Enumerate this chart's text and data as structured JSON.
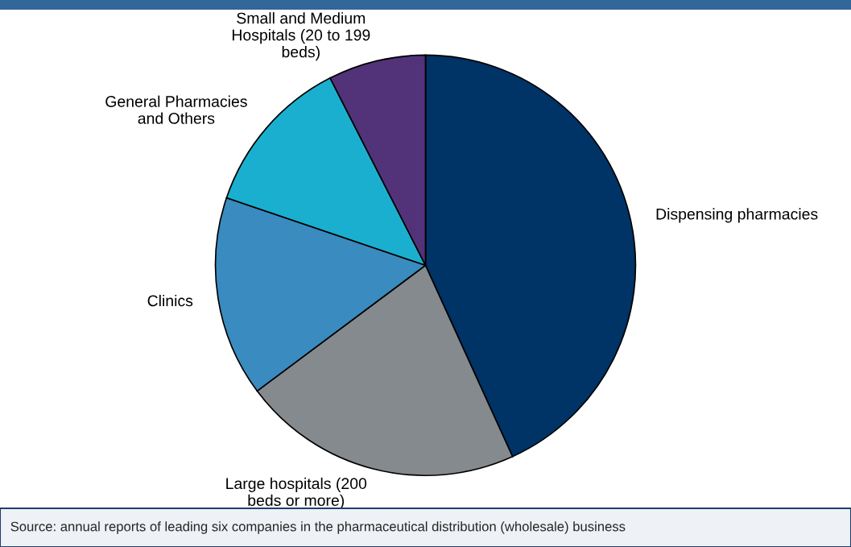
{
  "chart_data": {
    "type": "pie",
    "categories": [
      "Dispensing pharmacies",
      "Large hospitals (200\nbeds or more)",
      "Clinics",
      "General Pharmacies\nand Others",
      "Small and Medium\nHospitals (20 to 199\nbeds)"
    ],
    "values": [
      43.2,
      21.6,
      15.4,
      12.3,
      7.5
    ],
    "colors": [
      "#003366",
      "#858a8e",
      "#3a8bbf",
      "#1bafcf",
      "#52337a"
    ],
    "annotations": [
      "Source: annual reports of leading six companies in the pharmaceutical distribution (wholesale) business"
    ],
    "legend": false
  }
}
